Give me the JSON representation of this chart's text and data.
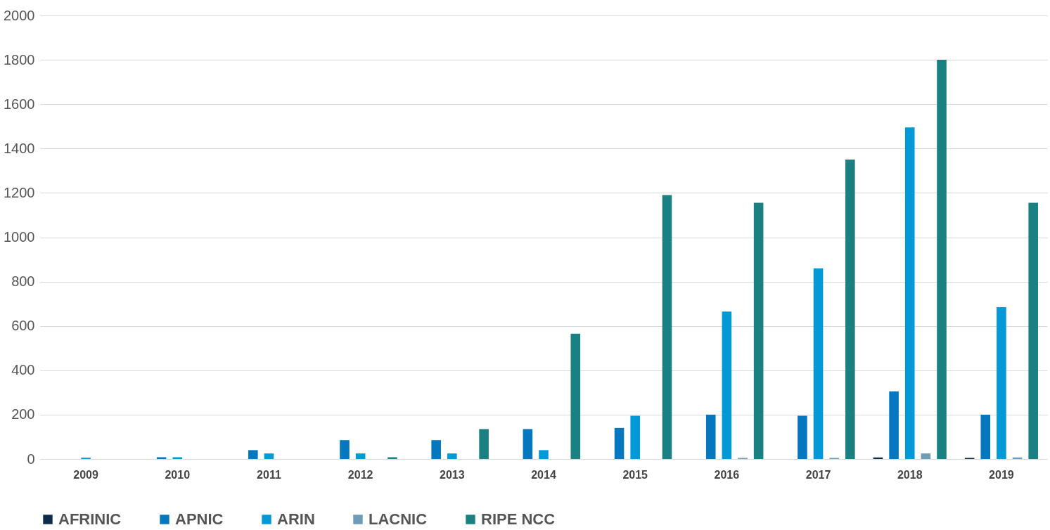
{
  "chart_data": {
    "type": "bar",
    "categories": [
      "2009",
      "2010",
      "2011",
      "2012",
      "2013",
      "2014",
      "2015",
      "2016",
      "2017",
      "2018",
      "2019"
    ],
    "series": [
      {
        "name": "AFRINIC",
        "color": "#0d2b4a",
        "values": [
          0,
          0,
          0,
          0,
          0,
          0,
          0,
          0,
          0,
          7,
          5
        ]
      },
      {
        "name": "APNIC",
        "color": "#0577bf",
        "values": [
          0,
          8,
          40,
          85,
          85,
          135,
          140,
          200,
          195,
          305,
          200
        ]
      },
      {
        "name": "ARIN",
        "color": "#0399d6",
        "values": [
          6,
          8,
          25,
          25,
          25,
          40,
          195,
          665,
          860,
          1495,
          685
        ]
      },
      {
        "name": "LACNIC",
        "color": "#6e9bb5",
        "values": [
          0,
          0,
          0,
          0,
          0,
          0,
          0,
          5,
          5,
          25,
          7
        ]
      },
      {
        "name": "RIPE NCC",
        "color": "#1a8082",
        "values": [
          0,
          0,
          0,
          8,
          135,
          565,
          1190,
          1155,
          1350,
          1800,
          1155
        ]
      }
    ],
    "ylim": [
      0,
      2000
    ],
    "yticks": [
      0,
      200,
      400,
      600,
      800,
      1000,
      1200,
      1400,
      1600,
      1800,
      2000
    ],
    "grid": "y",
    "legend": "bottom"
  }
}
